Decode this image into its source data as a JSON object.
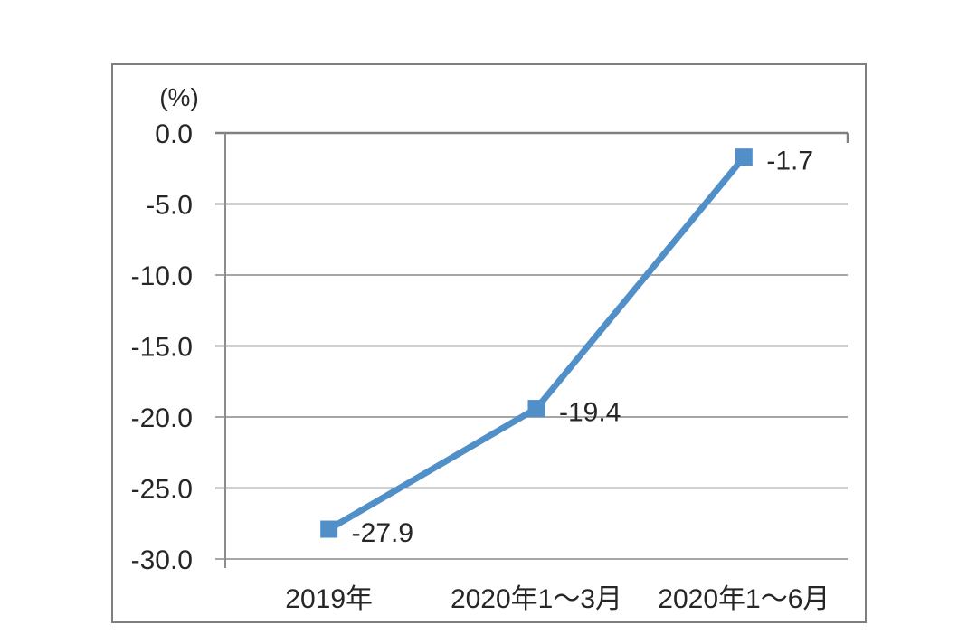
{
  "chart_data": {
    "type": "line",
    "title": "",
    "unit_label": "(%)",
    "categories": [
      "2019年",
      "2020年1～3月",
      "2020年1～6月"
    ],
    "series": [
      {
        "name": "series-1",
        "values": [
          -27.9,
          -19.4,
          -1.7
        ]
      }
    ],
    "data_labels": [
      "-27.9",
      "-19.4",
      "-1.7"
    ],
    "yticks": {
      "values": [
        0,
        -5,
        -10,
        -15,
        -20,
        -25,
        -30
      ],
      "labels": [
        "0.0",
        "-5.0",
        "-10.0",
        "-15.0",
        "-20.0",
        "-25.0",
        "-30.0"
      ]
    },
    "ylim": [
      -30,
      0
    ],
    "grid": true,
    "legend": "none",
    "marker": "square",
    "colors": {
      "line": "#518fc9",
      "marker": "#518fc9",
      "gridline": "#a6a6a6",
      "zero_line": "#808080",
      "axis": "#8c8c8c",
      "text": "#262626",
      "frame_border": "#7f7f7f",
      "background": "#ffffff"
    }
  }
}
